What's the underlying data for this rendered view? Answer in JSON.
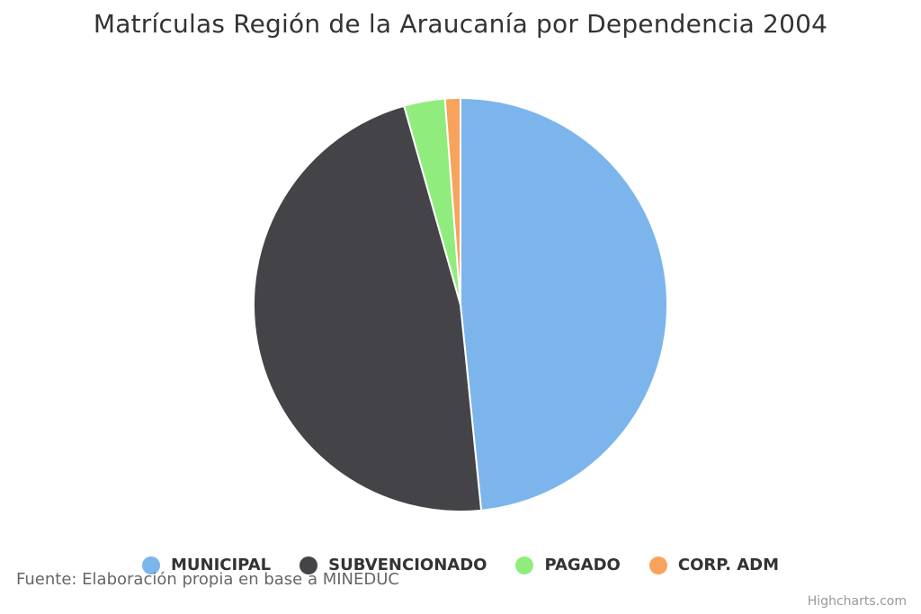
{
  "chart_data": {
    "type": "pie",
    "title": "Matrículas Región de la Araucanía por Dependencia 2004",
    "series": [
      {
        "data": [
          {
            "name": "MUNICIPAL",
            "value": 48.4,
            "color": "#7cb5ec"
          },
          {
            "name": "SUBVENCIONADO",
            "value": 47.2,
            "color": "#434348"
          },
          {
            "name": "PAGADO",
            "value": 3.2,
            "color": "#90ed7d"
          },
          {
            "name": "CORP. ADM",
            "value": 1.2,
            "color": "#f7a35c"
          }
        ]
      }
    ],
    "legend_position": "bottom-center",
    "source": "Fuente: Elaboración propia en base a MINEDUC"
  },
  "credits": {
    "text": "Highcharts.com"
  }
}
